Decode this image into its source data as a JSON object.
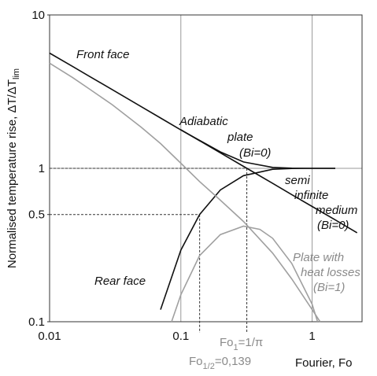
{
  "chart_data": {
    "type": "line",
    "x_label": "Fourier, Fo",
    "y_label": {
      "main": "Normalised temperature rise, ΔT/ΔT",
      "sub": "lim"
    },
    "log_x": true,
    "log_y": true,
    "grid": true,
    "xlim": [
      0.01,
      2.4
    ],
    "ylim": [
      0.1,
      10
    ],
    "xticks": [
      0.01,
      0.1,
      1
    ],
    "yticks": [
      0.1,
      0.5,
      1,
      10
    ],
    "series": [
      {
        "color": "#111111",
        "x": [
          0.01,
          0.015,
          0.02,
          0.03,
          0.05,
          0.07,
          0.1,
          0.139,
          0.2,
          0.3,
          0.5,
          0.7,
          1,
          1.5
        ],
        "values": [
          5.64,
          4.61,
          3.99,
          3.26,
          2.52,
          2.13,
          1.78,
          1.52,
          1.28,
          1.1,
          1.014,
          1.002,
          1.0,
          1.0
        ]
      },
      {
        "color": "#111111",
        "x": [
          0.1,
          0.139,
          0.2,
          0.3,
          0.5,
          0.7,
          1,
          1.5,
          2.2
        ],
        "values": [
          1.784,
          1.513,
          1.262,
          1.03,
          0.798,
          0.674,
          0.564,
          0.461,
          0.38
        ]
      },
      {
        "color": "#111111",
        "x": [
          0.07,
          0.1,
          0.139,
          0.2,
          0.3,
          0.5,
          0.7,
          1,
          1.5
        ],
        "values": [
          0.12,
          0.293,
          0.5,
          0.723,
          0.896,
          0.986,
          0.998,
          1.0,
          1.0
        ]
      },
      {
        "color": "#a0a0a0",
        "x": [
          0.01,
          0.015,
          0.02,
          0.03,
          0.05,
          0.07,
          0.1,
          0.139,
          0.2,
          0.3,
          0.5,
          0.7,
          1,
          1.15
        ],
        "values": [
          4.85,
          3.9,
          3.3,
          2.6,
          1.85,
          1.45,
          1.08,
          0.82,
          0.62,
          0.45,
          0.28,
          0.19,
          0.12,
          0.1
        ]
      },
      {
        "color": "#a0a0a0",
        "x": [
          0.085,
          0.1,
          0.139,
          0.2,
          0.3,
          0.4,
          0.5,
          0.7,
          1,
          1.1
        ],
        "values": [
          0.1,
          0.15,
          0.27,
          0.37,
          0.42,
          0.4,
          0.35,
          0.24,
          0.13,
          0.1
        ]
      }
    ],
    "guides": [
      {
        "x": 0.139,
        "y": 0.5
      },
      {
        "x": 0.318,
        "y": 1
      }
    ],
    "annotations": {
      "front": "Front face",
      "adiabatic": [
        "Adiabatic",
        "plate",
        "(Bi=0)"
      ],
      "semi": [
        "semi",
        "infinite",
        "medium",
        "(Bi=0)"
      ],
      "losses": [
        "Plate with",
        "heat losses",
        "(Bi=1)"
      ],
      "rear": "Rear face",
      "fo_half": {
        "a": "Fo",
        "sub": "1/2",
        "b": "=0,139"
      },
      "fo_one": {
        "a": "Fo",
        "sub": "1",
        "b": "=1/π"
      }
    }
  }
}
